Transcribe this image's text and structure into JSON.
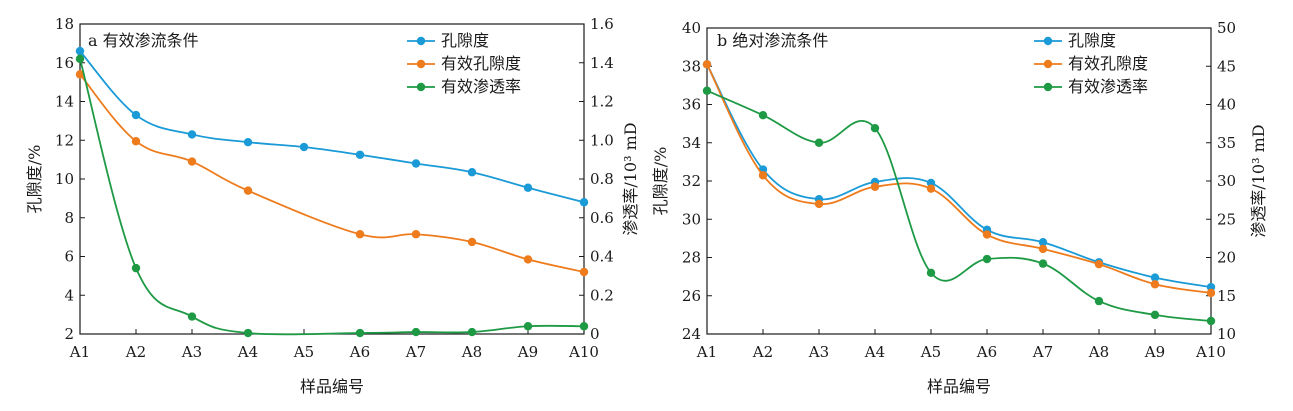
{
  "chart_data": [
    {
      "type": "line",
      "title": "a 有效渗流条件",
      "xlabel": "样品编号",
      "ylabel": "孔隙度/%",
      "y2label": "渗透率/10³ mD",
      "categories": [
        "A1",
        "A2",
        "A3",
        "A4",
        "A5",
        "A6",
        "A7",
        "A8",
        "A9",
        "A10"
      ],
      "ylim": [
        2,
        18
      ],
      "yticks": [
        "2",
        "4",
        "6",
        "8",
        "10",
        "12",
        "14",
        "16",
        "18"
      ],
      "y2lim": [
        0,
        1.6
      ],
      "y2ticks": [
        "0",
        "0.2",
        "0.4",
        "0.6",
        "0.8",
        "1.0",
        "1.2",
        "1.4",
        "1.6"
      ],
      "grid": false,
      "legend_position": "top-right",
      "series": [
        {
          "name": "孔隙度",
          "axis": "left",
          "color": "#1a9ad6",
          "values": [
            16.6,
            13.3,
            12.3,
            11.9,
            11.65,
            11.25,
            10.8,
            10.35,
            9.55,
            8.8
          ]
        },
        {
          "name": "有效孔隙度",
          "axis": "left",
          "color": "#ee7b1c",
          "values": [
            15.4,
            11.95,
            10.9,
            9.4,
            null,
            7.15,
            7.15,
            6.75,
            5.85,
            5.2
          ]
        },
        {
          "name": "有效渗透率",
          "axis": "right",
          "color": "#1e9a45",
          "values": [
            1.42,
            0.34,
            0.09,
            0.005,
            null,
            0.005,
            0.01,
            0.01,
            0.04,
            0.04
          ]
        }
      ]
    },
    {
      "type": "line",
      "title": "b 绝对渗流条件",
      "xlabel": "样品编号",
      "ylabel": "孔隙度/%",
      "y2label": "渗透率/10³ mD",
      "categories": [
        "A1",
        "A2",
        "A3",
        "A4",
        "A5",
        "A6",
        "A7",
        "A8",
        "A9",
        "A10"
      ],
      "ylim": [
        24,
        40
      ],
      "yticks": [
        "24",
        "26",
        "28",
        "30",
        "32",
        "34",
        "36",
        "38",
        "40"
      ],
      "y2lim": [
        10,
        50
      ],
      "y2ticks": [
        "10",
        "15",
        "20",
        "25",
        "30",
        "35",
        "40",
        "45",
        "50"
      ],
      "grid": false,
      "legend_position": "top-right",
      "series": [
        {
          "name": "孔隙度",
          "axis": "left",
          "color": "#1a9ad6",
          "values": [
            38.1,
            32.6,
            31.05,
            31.95,
            31.9,
            29.45,
            28.8,
            27.75,
            26.95,
            26.45
          ]
        },
        {
          "name": "有效孔隙度",
          "axis": "left",
          "color": "#ee7b1c",
          "values": [
            38.1,
            32.3,
            30.8,
            31.7,
            31.6,
            29.2,
            28.45,
            27.65,
            26.6,
            26.15
          ]
        },
        {
          "name": "有效渗透率",
          "axis": "right",
          "color": "#1e9a45",
          "values": [
            41.8,
            38.6,
            35.0,
            36.9,
            18.0,
            19.8,
            19.2,
            14.3,
            12.5,
            11.7
          ]
        }
      ]
    }
  ]
}
